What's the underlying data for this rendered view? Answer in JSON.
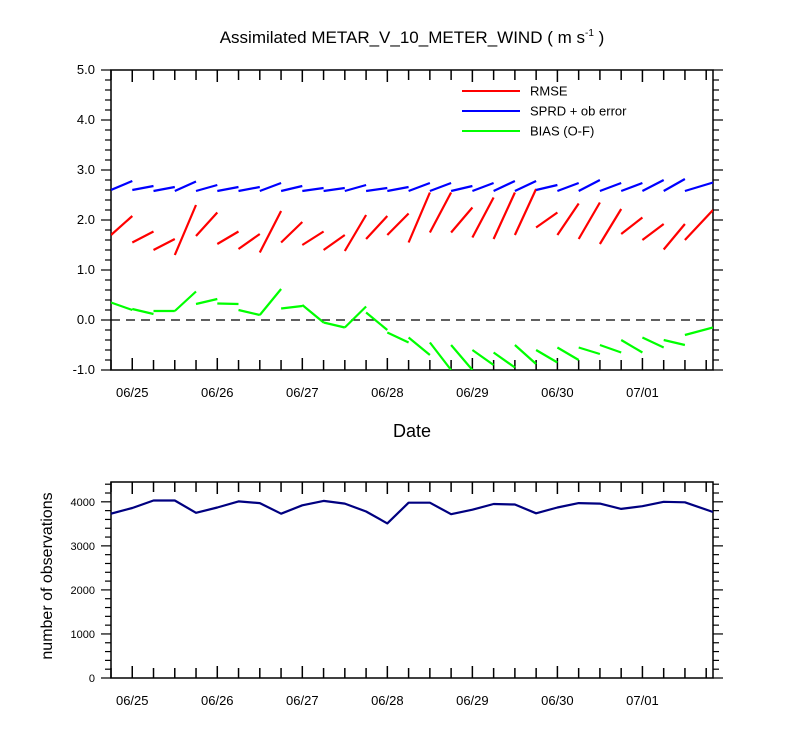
{
  "title": {
    "main": "Assimilated METAR_V_10_METER_WIND ( m s",
    "sup": "-1",
    "close": " )"
  },
  "chart_data": [
    {
      "type": "line",
      "title": "Assimilated METAR_V_10_METER_WIND ( m s-1 )",
      "xlabel": "Date",
      "ylabel": "",
      "ylim": [
        -1.0,
        5.0
      ],
      "yticks": [
        "-1.0",
        "0.0",
        "1.0",
        "2.0",
        "3.0",
        "4.0",
        "5.0"
      ],
      "xticks": [
        "06/25",
        "06/26",
        "06/27",
        "06/28",
        "06/29",
        "06/30",
        "07/01"
      ],
      "xtick_days": [
        1,
        2,
        3,
        4,
        5,
        6,
        7
      ],
      "xlim_days": [
        0.75,
        7.83
      ],
      "legend_position": "top-right",
      "zero_line": 0.0,
      "series": [
        {
          "name": "RMSE",
          "color": "#ff0000",
          "segments": [
            [
              [
                0.75,
                1.7
              ],
              [
                1.0,
                2.08
              ]
            ],
            [
              [
                1.0,
                1.55
              ],
              [
                1.25,
                1.77
              ]
            ],
            [
              [
                1.25,
                1.4
              ],
              [
                1.5,
                1.62
              ]
            ],
            [
              [
                1.5,
                1.3
              ],
              [
                1.75,
                2.3
              ]
            ],
            [
              [
                1.75,
                1.68
              ],
              [
                2.0,
                2.15
              ]
            ],
            [
              [
                2.0,
                1.52
              ],
              [
                2.25,
                1.77
              ]
            ],
            [
              [
                2.25,
                1.42
              ],
              [
                2.5,
                1.72
              ]
            ],
            [
              [
                2.5,
                1.35
              ],
              [
                2.75,
                2.18
              ]
            ],
            [
              [
                2.75,
                1.55
              ],
              [
                3.0,
                1.96
              ]
            ],
            [
              [
                3.0,
                1.5
              ],
              [
                3.25,
                1.77
              ]
            ],
            [
              [
                3.25,
                1.4
              ],
              [
                3.5,
                1.7
              ]
            ],
            [
              [
                3.5,
                1.38
              ],
              [
                3.75,
                2.1
              ]
            ],
            [
              [
                3.75,
                1.62
              ],
              [
                4.0,
                2.08
              ]
            ],
            [
              [
                4.0,
                1.7
              ],
              [
                4.25,
                2.13
              ]
            ],
            [
              [
                4.25,
                1.55
              ],
              [
                4.5,
                2.55
              ]
            ],
            [
              [
                4.5,
                1.75
              ],
              [
                4.75,
                2.55
              ]
            ],
            [
              [
                4.75,
                1.75
              ],
              [
                5.0,
                2.25
              ]
            ],
            [
              [
                5.0,
                1.65
              ],
              [
                5.25,
                2.45
              ]
            ],
            [
              [
                5.25,
                1.62
              ],
              [
                5.5,
                2.55
              ]
            ],
            [
              [
                5.5,
                1.7
              ],
              [
                5.75,
                2.62
              ]
            ],
            [
              [
                5.75,
                1.85
              ],
              [
                6.0,
                2.15
              ]
            ],
            [
              [
                6.0,
                1.7
              ],
              [
                6.25,
                2.33
              ]
            ],
            [
              [
                6.25,
                1.62
              ],
              [
                6.5,
                2.35
              ]
            ],
            [
              [
                6.5,
                1.52
              ],
              [
                6.75,
                2.22
              ]
            ],
            [
              [
                6.75,
                1.72
              ],
              [
                7.0,
                2.05
              ]
            ],
            [
              [
                7.0,
                1.6
              ],
              [
                7.25,
                1.92
              ]
            ],
            [
              [
                7.25,
                1.41
              ],
              [
                7.5,
                1.92
              ]
            ],
            [
              [
                7.5,
                1.6
              ],
              [
                7.83,
                2.2
              ]
            ]
          ]
        },
        {
          "name": "SPRD + ob error",
          "color": "#0000ff",
          "segments": [
            [
              [
                0.75,
                2.6
              ],
              [
                1.0,
                2.78
              ]
            ],
            [
              [
                1.0,
                2.6
              ],
              [
                1.25,
                2.68
              ]
            ],
            [
              [
                1.25,
                2.58
              ],
              [
                1.5,
                2.66
              ]
            ],
            [
              [
                1.5,
                2.58
              ],
              [
                1.75,
                2.77
              ]
            ],
            [
              [
                1.75,
                2.58
              ],
              [
                2.0,
                2.7
              ]
            ],
            [
              [
                2.0,
                2.58
              ],
              [
                2.25,
                2.66
              ]
            ],
            [
              [
                2.25,
                2.58
              ],
              [
                2.5,
                2.66
              ]
            ],
            [
              [
                2.5,
                2.58
              ],
              [
                2.75,
                2.74
              ]
            ],
            [
              [
                2.75,
                2.58
              ],
              [
                3.0,
                2.68
              ]
            ],
            [
              [
                3.0,
                2.58
              ],
              [
                3.25,
                2.64
              ]
            ],
            [
              [
                3.25,
                2.58
              ],
              [
                3.5,
                2.64
              ]
            ],
            [
              [
                3.5,
                2.58
              ],
              [
                3.75,
                2.7
              ]
            ],
            [
              [
                3.75,
                2.58
              ],
              [
                4.0,
                2.64
              ]
            ],
            [
              [
                4.0,
                2.58
              ],
              [
                4.25,
                2.66
              ]
            ],
            [
              [
                4.25,
                2.58
              ],
              [
                4.5,
                2.74
              ]
            ],
            [
              [
                4.5,
                2.58
              ],
              [
                4.75,
                2.74
              ]
            ],
            [
              [
                4.75,
                2.58
              ],
              [
                5.0,
                2.68
              ]
            ],
            [
              [
                5.0,
                2.58
              ],
              [
                5.25,
                2.74
              ]
            ],
            [
              [
                5.25,
                2.58
              ],
              [
                5.5,
                2.78
              ]
            ],
            [
              [
                5.5,
                2.58
              ],
              [
                5.75,
                2.78
              ]
            ],
            [
              [
                5.75,
                2.6
              ],
              [
                6.0,
                2.7
              ]
            ],
            [
              [
                6.0,
                2.58
              ],
              [
                6.25,
                2.74
              ]
            ],
            [
              [
                6.25,
                2.58
              ],
              [
                6.5,
                2.8
              ]
            ],
            [
              [
                6.5,
                2.58
              ],
              [
                6.75,
                2.74
              ]
            ],
            [
              [
                6.75,
                2.58
              ],
              [
                7.0,
                2.74
              ]
            ],
            [
              [
                7.0,
                2.58
              ],
              [
                7.25,
                2.8
              ]
            ],
            [
              [
                7.25,
                2.58
              ],
              [
                7.5,
                2.82
              ]
            ],
            [
              [
                7.5,
                2.58
              ],
              [
                7.83,
                2.75
              ]
            ]
          ]
        },
        {
          "name": "BIAS (O-F)",
          "color": "#00ff00",
          "segments": [
            [
              [
                0.75,
                0.35
              ],
              [
                1.0,
                0.2
              ]
            ],
            [
              [
                1.0,
                0.22
              ],
              [
                1.25,
                0.12
              ]
            ],
            [
              [
                1.25,
                0.18
              ],
              [
                1.5,
                0.18
              ]
            ],
            [
              [
                1.5,
                0.18
              ],
              [
                1.75,
                0.57
              ]
            ],
            [
              [
                1.75,
                0.32
              ],
              [
                2.0,
                0.42
              ]
            ],
            [
              [
                2.0,
                0.33
              ],
              [
                2.25,
                0.32
              ]
            ],
            [
              [
                2.25,
                0.2
              ],
              [
                2.5,
                0.1
              ]
            ],
            [
              [
                2.5,
                0.1
              ],
              [
                2.75,
                0.62
              ]
            ],
            [
              [
                2.75,
                0.23
              ],
              [
                3.0,
                0.28
              ]
            ],
            [
              [
                3.0,
                0.3
              ],
              [
                3.25,
                -0.05
              ]
            ],
            [
              [
                3.25,
                -0.05
              ],
              [
                3.5,
                -0.15
              ]
            ],
            [
              [
                3.5,
                -0.15
              ],
              [
                3.75,
                0.27
              ]
            ],
            [
              [
                3.75,
                0.15
              ],
              [
                4.0,
                -0.2
              ]
            ],
            [
              [
                4.0,
                -0.25
              ],
              [
                4.25,
                -0.45
              ]
            ],
            [
              [
                4.25,
                -0.35
              ],
              [
                4.5,
                -0.7
              ]
            ],
            [
              [
                4.5,
                -0.45
              ],
              [
                4.75,
                -1.0
              ]
            ],
            [
              [
                4.75,
                -0.5
              ],
              [
                5.0,
                -1.0
              ]
            ],
            [
              [
                5.0,
                -0.6
              ],
              [
                5.25,
                -0.9
              ]
            ],
            [
              [
                5.25,
                -0.65
              ],
              [
                5.5,
                -0.95
              ]
            ],
            [
              [
                5.5,
                -0.5
              ],
              [
                5.75,
                -0.88
              ]
            ],
            [
              [
                5.75,
                -0.6
              ],
              [
                6.0,
                -0.85
              ]
            ],
            [
              [
                6.0,
                -0.55
              ],
              [
                6.25,
                -0.8
              ]
            ],
            [
              [
                6.25,
                -0.55
              ],
              [
                6.5,
                -0.68
              ]
            ],
            [
              [
                6.5,
                -0.5
              ],
              [
                6.75,
                -0.65
              ]
            ],
            [
              [
                6.75,
                -0.4
              ],
              [
                7.0,
                -0.65
              ]
            ],
            [
              [
                7.0,
                -0.35
              ],
              [
                7.25,
                -0.55
              ]
            ],
            [
              [
                7.25,
                -0.4
              ],
              [
                7.5,
                -0.5
              ]
            ],
            [
              [
                7.5,
                -0.3
              ],
              [
                7.83,
                -0.15
              ]
            ]
          ]
        }
      ]
    },
    {
      "type": "line",
      "title": "",
      "xlabel": "",
      "ylabel": "number of observations",
      "ylim": [
        0,
        4450
      ],
      "yticks": [
        "0",
        "1000",
        "2000",
        "3000",
        "4000"
      ],
      "xticks": [
        "06/25",
        "06/26",
        "06/27",
        "06/28",
        "06/29",
        "06/30",
        "07/01"
      ],
      "xtick_days": [
        1,
        2,
        3,
        4,
        5,
        6,
        7
      ],
      "xlim_days": [
        0.75,
        7.83
      ],
      "series": [
        {
          "color": "#000080",
          "x": [
            0.75,
            1.0,
            1.25,
            1.5,
            1.75,
            2.0,
            2.25,
            2.5,
            2.75,
            3.0,
            3.25,
            3.5,
            3.75,
            4.0,
            4.25,
            4.5,
            4.75,
            5.0,
            5.25,
            5.5,
            5.75,
            6.0,
            6.25,
            6.5,
            6.75,
            7.0,
            7.25,
            7.5,
            7.83
          ],
          "values": [
            3730,
            3860,
            4030,
            4030,
            3750,
            3870,
            4010,
            3970,
            3730,
            3920,
            4020,
            3960,
            3780,
            3510,
            3980,
            3980,
            3720,
            3820,
            3950,
            3940,
            3740,
            3870,
            3970,
            3960,
            3840,
            3900,
            4000,
            3990,
            3770
          ]
        }
      ]
    }
  ]
}
